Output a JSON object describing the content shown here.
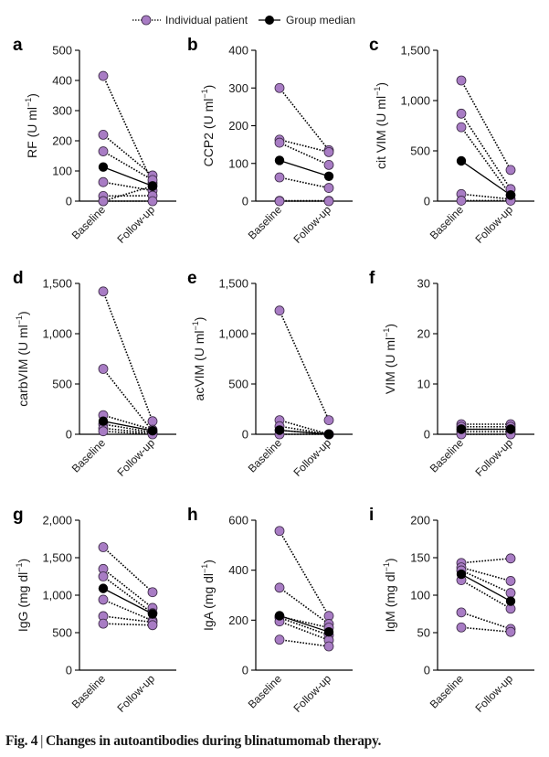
{
  "legend": {
    "individual_label": "Individual patient",
    "median_label": "Group median"
  },
  "colors": {
    "patient_fill": "#a87cc4",
    "patient_stroke": "#3b2a45",
    "median_fill": "#000000",
    "axis": "#000000",
    "tick_text": "#1a1a1a"
  },
  "caption": {
    "figure_label": "Fig. 4",
    "separator": "|",
    "text": "Changes in autoantibodies during blinatumomab therapy."
  },
  "chart_data": [
    {
      "panel": "a",
      "type": "line",
      "ylabel_main": "RF (U ml",
      "ylabel_sup": "−1",
      "ylabel_end": ")",
      "categories": [
        "Baseline",
        "Follow-up"
      ],
      "ylim": [
        0,
        500
      ],
      "yticks": [
        0,
        100,
        200,
        300,
        400,
        500
      ],
      "ytick_labels": [
        "0",
        "100",
        "200",
        "300",
        "400",
        "500"
      ],
      "patients": [
        [
          415,
          60
        ],
        [
          220,
          85
        ],
        [
          165,
          70
        ],
        [
          63,
          35
        ],
        [
          17,
          18
        ],
        [
          0,
          0
        ],
        [
          0,
          50
        ]
      ],
      "median": [
        113,
        50
      ]
    },
    {
      "panel": "b",
      "type": "line",
      "ylabel_main": "CCP2 (U ml",
      "ylabel_sup": "−1",
      "ylabel_end": ")",
      "categories": [
        "Baseline",
        "Follow-up"
      ],
      "ylim": [
        0,
        400
      ],
      "yticks": [
        0,
        100,
        200,
        300,
        400
      ],
      "ytick_labels": [
        "0",
        "100",
        "200",
        "300",
        "400"
      ],
      "patients": [
        [
          300,
          135
        ],
        [
          163,
          130
        ],
        [
          155,
          96
        ],
        [
          63,
          35
        ],
        [
          1,
          1
        ],
        [
          0,
          0
        ]
      ],
      "median": [
        108,
        66
      ]
    },
    {
      "panel": "c",
      "type": "line",
      "ylabel_main": "cit VIM (U ml",
      "ylabel_sup": "−1",
      "ylabel_end": ")",
      "categories": [
        "Baseline",
        "Follow-up"
      ],
      "ylim": [
        0,
        1500
      ],
      "yticks": [
        0,
        500,
        1000,
        1500
      ],
      "ytick_labels": [
        "0",
        "500",
        "1,000",
        "1,500"
      ],
      "patients": [
        [
          1200,
          310
        ],
        [
          870,
          120
        ],
        [
          735,
          60
        ],
        [
          70,
          20
        ],
        [
          5,
          5
        ]
      ],
      "median": [
        400,
        60
      ]
    },
    {
      "panel": "d",
      "type": "line",
      "ylabel_main": "carbVIM (U ml",
      "ylabel_sup": "−1",
      "ylabel_end": ")",
      "categories": [
        "Baseline",
        "Follow-up"
      ],
      "ylim": [
        0,
        1500
      ],
      "yticks": [
        0,
        500,
        1000,
        1500
      ],
      "ytick_labels": [
        "0",
        "500",
        "1,000",
        "1,500"
      ],
      "patients": [
        [
          1420,
          130
        ],
        [
          650,
          30
        ],
        [
          190,
          45
        ],
        [
          100,
          20
        ],
        [
          60,
          10
        ],
        [
          30,
          0
        ]
      ],
      "median": [
        130,
        35
      ]
    },
    {
      "panel": "e",
      "type": "line",
      "ylabel_main": "acVIM (U ml",
      "ylabel_sup": "−1",
      "ylabel_end": ")",
      "categories": [
        "Baseline",
        "Follow-up"
      ],
      "ylim": [
        0,
        1500
      ],
      "yticks": [
        0,
        500,
        1000,
        1500
      ],
      "ytick_labels": [
        "0",
        "500",
        "1,000",
        "1,500"
      ],
      "patients": [
        [
          1230,
          140
        ],
        [
          140,
          0
        ],
        [
          80,
          0
        ],
        [
          40,
          0
        ],
        [
          0,
          0
        ]
      ],
      "median": [
        40,
        0
      ]
    },
    {
      "panel": "f",
      "type": "line",
      "ylabel_main": "VIM (U ml",
      "ylabel_sup": "−1",
      "ylabel_end": ")",
      "categories": [
        "Baseline",
        "Follow-up"
      ],
      "ylim": [
        0,
        30
      ],
      "yticks": [
        0,
        10,
        20,
        30
      ],
      "ytick_labels": [
        "0",
        "10",
        "20",
        "30"
      ],
      "patients": [
        [
          2,
          2
        ],
        [
          1.5,
          1.5
        ],
        [
          1,
          1
        ],
        [
          0.5,
          0.5
        ],
        [
          0,
          0
        ]
      ],
      "median": [
        1,
        1
      ]
    },
    {
      "panel": "g",
      "type": "line",
      "ylabel_main": "IgG (mg dl",
      "ylabel_sup": "−1",
      "ylabel_end": ")",
      "categories": [
        "Baseline",
        "Follow-up"
      ],
      "ylim": [
        0,
        2000
      ],
      "yticks": [
        0,
        500,
        1000,
        1500,
        2000
      ],
      "ytick_labels": [
        "0",
        "500",
        "1,000",
        "1,500",
        "2,000"
      ],
      "patients": [
        [
          1640,
          1040
        ],
        [
          1350,
          830
        ],
        [
          1250,
          760
        ],
        [
          940,
          660
        ],
        [
          720,
          640
        ],
        [
          620,
          600
        ]
      ],
      "median": [
        1090,
        750
      ]
    },
    {
      "panel": "h",
      "type": "line",
      "ylabel_main": "IgA (mg dl",
      "ylabel_sup": "−1",
      "ylabel_end": ")",
      "categories": [
        "Baseline",
        "Follow-up"
      ],
      "ylim": [
        0,
        600
      ],
      "yticks": [
        0,
        200,
        400,
        600
      ],
      "ytick_labels": [
        "0",
        "200",
        "400",
        "600"
      ],
      "patients": [
        [
          557,
          217
        ],
        [
          330,
          185
        ],
        [
          215,
          170
        ],
        [
          210,
          140
        ],
        [
          195,
          120
        ],
        [
          122,
          95
        ]
      ],
      "median": [
        218,
        153
      ]
    },
    {
      "panel": "i",
      "type": "line",
      "ylabel_main": "IgM (mg dl",
      "ylabel_sup": "−1",
      "ylabel_end": ")",
      "categories": [
        "Baseline",
        "Follow-up"
      ],
      "ylim": [
        0,
        200
      ],
      "yticks": [
        0,
        50,
        100,
        150,
        200
      ],
      "ytick_labels": [
        "0",
        "50",
        "100",
        "150",
        "200"
      ],
      "patients": [
        [
          143,
          149
        ],
        [
          137,
          119
        ],
        [
          133,
          103
        ],
        [
          120,
          82
        ],
        [
          77,
          55
        ],
        [
          57,
          51
        ]
      ],
      "median": [
        128,
        92
      ]
    }
  ]
}
